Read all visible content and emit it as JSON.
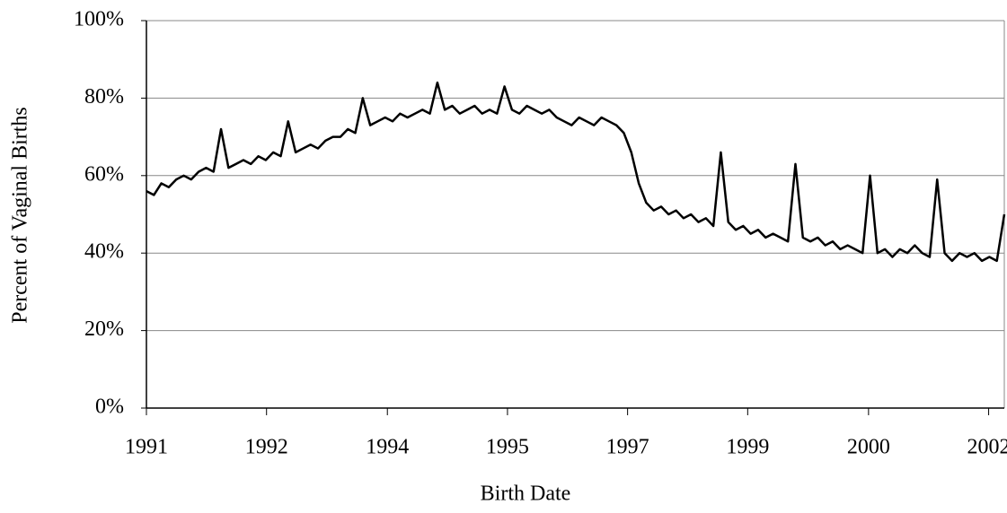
{
  "chart_data": {
    "type": "line",
    "y_label": "Percent of Vaginal Births",
    "x_label": "Birth Date",
    "xlim": [
      1991,
      2002.5
    ],
    "xticks": [
      {
        "value": 1991,
        "label": "1991"
      },
      {
        "value": 1992.61,
        "label": "1992"
      },
      {
        "value": 1994.23,
        "label": "1994"
      },
      {
        "value": 1995.84,
        "label": "1995"
      },
      {
        "value": 1997.45,
        "label": "1997"
      },
      {
        "value": 1999.06,
        "label": "1999"
      },
      {
        "value": 2000.68,
        "label": "2000"
      },
      {
        "value": 2002.29,
        "label": "2002"
      }
    ],
    "ylim": [
      0,
      100
    ],
    "yticks": [
      {
        "value": 0,
        "label": "0%"
      },
      {
        "value": 20,
        "label": "20%"
      },
      {
        "value": 40,
        "label": "40%"
      },
      {
        "value": 60,
        "label": "60%"
      },
      {
        "value": 80,
        "label": "80%"
      },
      {
        "value": 100,
        "label": "100%"
      }
    ],
    "grid": true,
    "x": [
      1991.0,
      1991.1,
      1991.2,
      1991.3,
      1991.4,
      1991.5,
      1991.6,
      1991.7,
      1991.8,
      1991.9,
      1992.0,
      1992.1,
      1992.2,
      1992.3,
      1992.4,
      1992.5,
      1992.6,
      1992.7,
      1992.8,
      1992.9,
      1993.0,
      1993.1,
      1993.2,
      1993.3,
      1993.4,
      1993.5,
      1993.6,
      1993.7,
      1993.8,
      1993.9,
      1994.0,
      1994.1,
      1994.2,
      1994.3,
      1994.4,
      1994.5,
      1994.6,
      1994.7,
      1994.8,
      1994.9,
      1995.0,
      1995.1,
      1995.2,
      1995.3,
      1995.4,
      1995.5,
      1995.6,
      1995.7,
      1995.8,
      1995.9,
      1996.0,
      1996.1,
      1996.2,
      1996.3,
      1996.4,
      1996.5,
      1996.6,
      1996.7,
      1996.8,
      1996.9,
      1997.0,
      1997.1,
      1997.2,
      1997.3,
      1997.4,
      1997.5,
      1997.6,
      1997.7,
      1997.8,
      1997.9,
      1998.0,
      1998.1,
      1998.2,
      1998.3,
      1998.4,
      1998.5,
      1998.6,
      1998.7,
      1998.8,
      1998.9,
      1999.0,
      1999.1,
      1999.2,
      1999.3,
      1999.4,
      1999.5,
      1999.6,
      1999.7,
      1999.8,
      1999.9,
      2000.0,
      2000.1,
      2000.2,
      2000.3,
      2000.4,
      2000.5,
      2000.6,
      2000.7,
      2000.8,
      2000.9,
      2001.0,
      2001.1,
      2001.2,
      2001.3,
      2001.4,
      2001.5,
      2001.6,
      2001.7,
      2001.8,
      2001.9,
      2002.0,
      2002.1,
      2002.2,
      2002.3,
      2002.4,
      2002.5
    ],
    "series": [
      {
        "color": "#000000",
        "values": [
          56,
          55,
          58,
          57,
          59,
          60,
          59,
          61,
          62,
          61,
          72,
          62,
          63,
          64,
          63,
          65,
          64,
          66,
          65,
          74,
          66,
          67,
          68,
          67,
          69,
          70,
          70,
          72,
          71,
          80,
          73,
          74,
          75,
          74,
          76,
          75,
          76,
          77,
          76,
          84,
          77,
          78,
          76,
          77,
          78,
          76,
          77,
          76,
          83,
          77,
          76,
          78,
          77,
          76,
          77,
          75,
          74,
          73,
          75,
          74,
          73,
          75,
          74,
          73,
          71,
          66,
          58,
          53,
          51,
          52,
          50,
          51,
          49,
          50,
          48,
          49,
          47,
          66,
          48,
          46,
          47,
          45,
          46,
          44,
          45,
          44,
          43,
          63,
          44,
          43,
          44,
          42,
          43,
          41,
          42,
          41,
          40,
          60,
          40,
          41,
          39,
          41,
          40,
          42,
          40,
          39,
          59,
          40,
          38,
          40,
          39,
          40,
          38,
          39,
          38,
          50
        ]
      }
    ]
  }
}
